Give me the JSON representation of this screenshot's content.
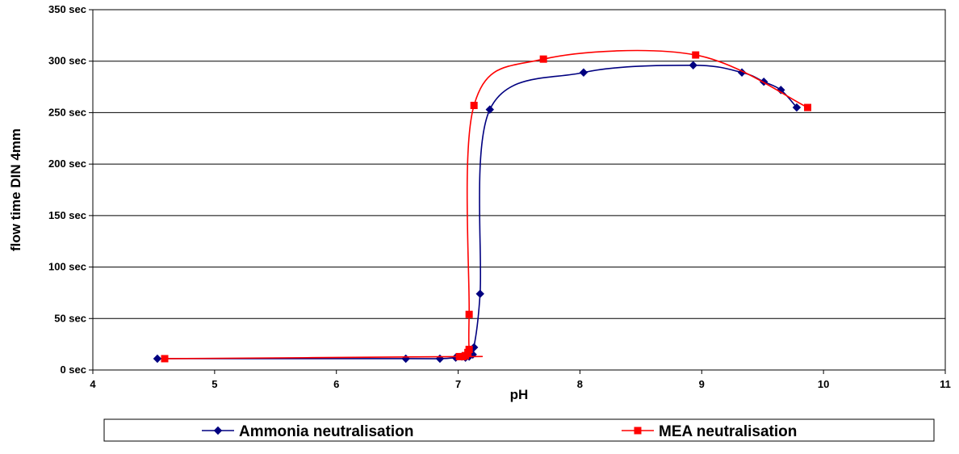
{
  "chart_data": {
    "type": "line",
    "xlabel": "pH",
    "ylabel": "flow time DIN 4mm",
    "xlim": [
      4,
      11
    ],
    "ylim": [
      0,
      350
    ],
    "x_ticks": [
      "4",
      "5",
      "6",
      "7",
      "8",
      "9",
      "10",
      "11"
    ],
    "y_ticks": [
      "0 sec",
      "50 sec",
      "100 sec",
      "150 sec",
      "200 sec",
      "250 sec",
      "300 sec",
      "350 sec"
    ],
    "grid": "horizontal",
    "legend_position": "bottom",
    "series": [
      {
        "name": "Ammonia neutralisation",
        "color": "#000080",
        "marker": "diamond",
        "points": [
          [
            4.53,
            11
          ],
          [
            6.57,
            11
          ],
          [
            6.85,
            11
          ],
          [
            6.98,
            12
          ],
          [
            7.03,
            13
          ],
          [
            7.06,
            12
          ],
          [
            7.09,
            13
          ],
          [
            7.12,
            15
          ],
          [
            7.13,
            22
          ],
          [
            7.18,
            74
          ],
          [
            7.26,
            253
          ],
          [
            8.03,
            289
          ],
          [
            8.93,
            296
          ],
          [
            9.33,
            289
          ],
          [
            9.51,
            280
          ],
          [
            9.65,
            272
          ],
          [
            9.78,
            255
          ]
        ]
      },
      {
        "name": "MEA neutralisation",
        "color": "#ff0000",
        "marker": "square",
        "points": [
          [
            4.59,
            11
          ],
          [
            7.01,
            13
          ],
          [
            7.04,
            13
          ],
          [
            7.06,
            14
          ],
          [
            7.08,
            17
          ],
          [
            7.09,
            20
          ],
          [
            7.09,
            54
          ],
          [
            7.13,
            257
          ],
          [
            7.7,
            302
          ],
          [
            8.95,
            306
          ],
          [
            9.87,
            255
          ]
        ]
      }
    ]
  }
}
